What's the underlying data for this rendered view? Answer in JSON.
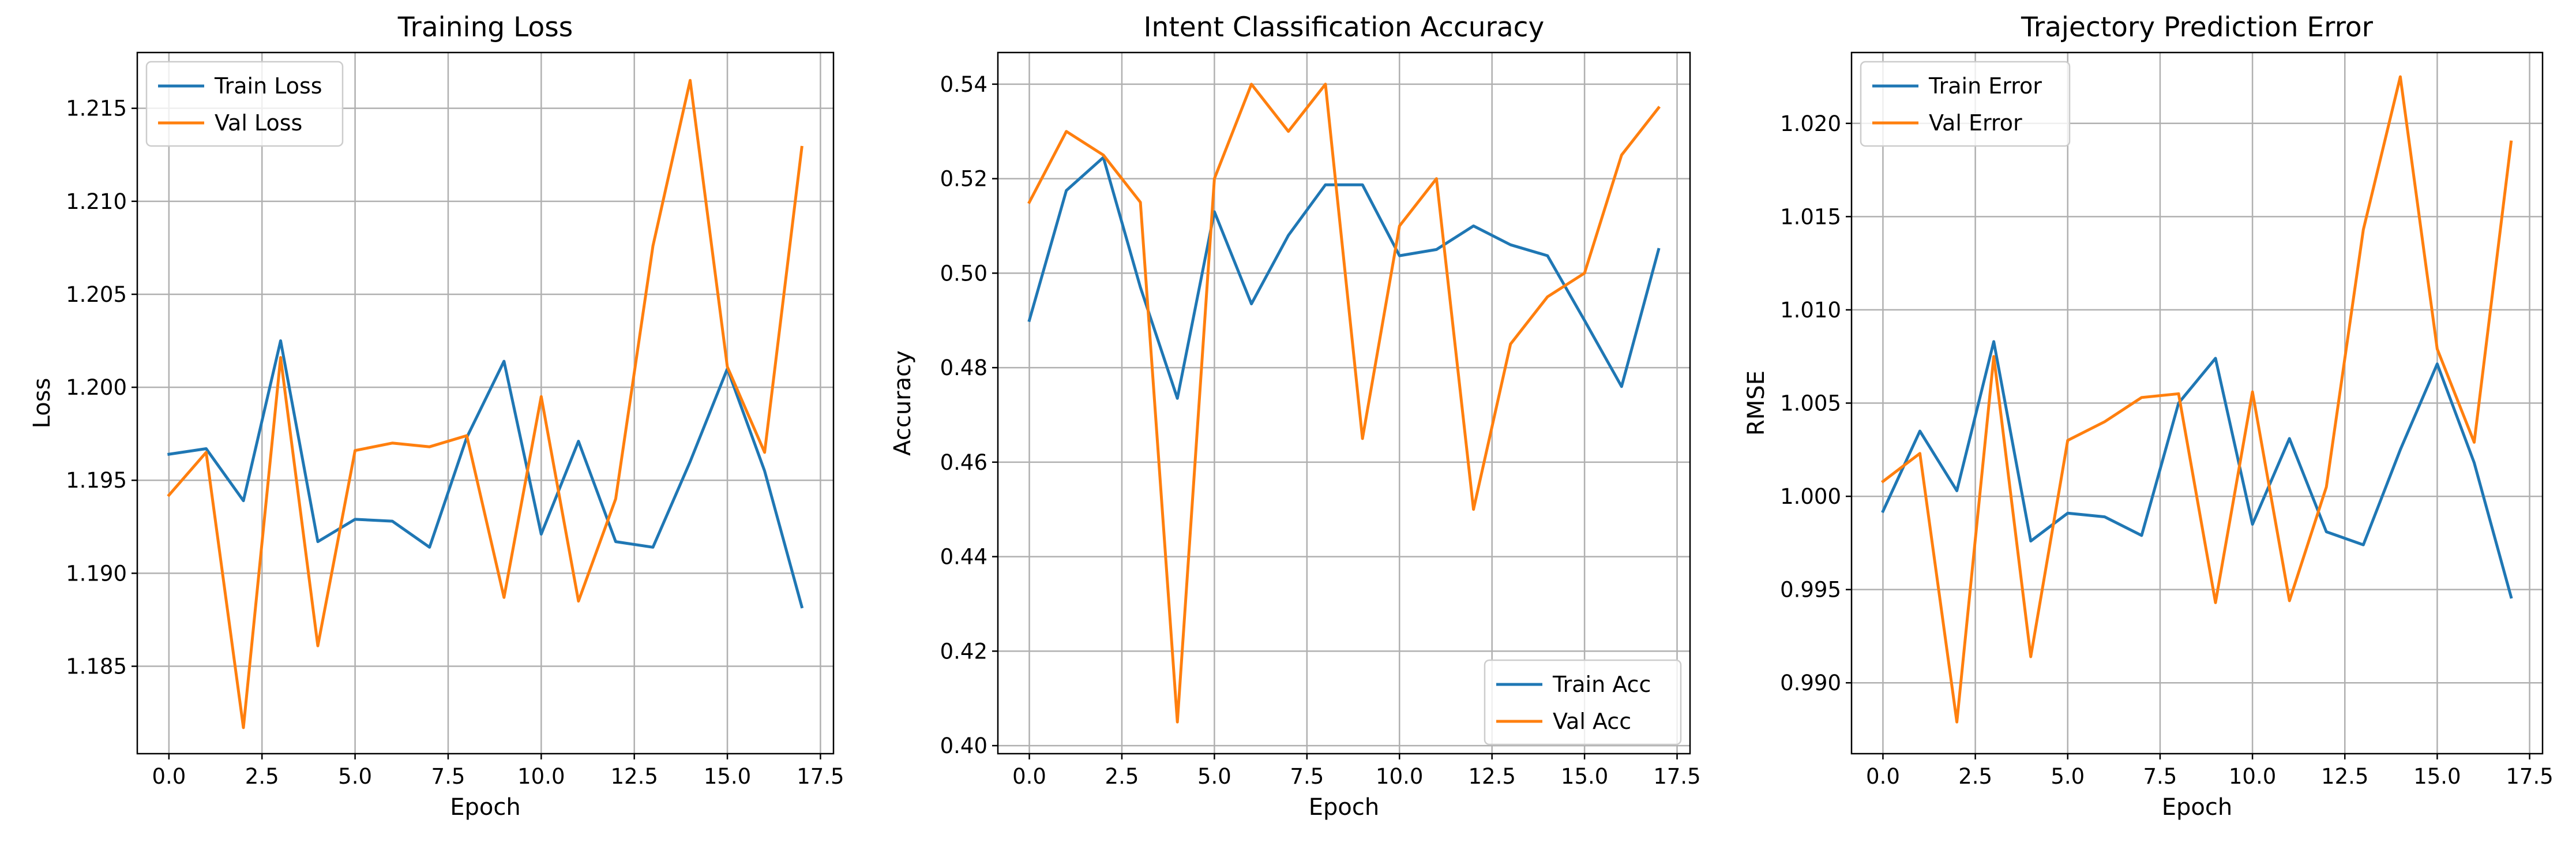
{
  "chart_data": [
    {
      "type": "line",
      "title": "Training Loss",
      "xlabel": "Epoch",
      "ylabel": "Loss",
      "xlim": [
        -0.85,
        17.85
      ],
      "ylim": [
        1.1803,
        1.218
      ],
      "xticks": [
        0.0,
        2.5,
        5.0,
        7.5,
        10.0,
        12.5,
        15.0,
        17.5
      ],
      "xtick_labels": [
        "0.0",
        "2.5",
        "5.0",
        "7.5",
        "10.0",
        "12.5",
        "15.0",
        "17.5"
      ],
      "yticks": [
        1.185,
        1.19,
        1.195,
        1.2,
        1.205,
        1.21,
        1.215
      ],
      "ytick_labels": [
        "1.185",
        "1.190",
        "1.195",
        "1.200",
        "1.205",
        "1.210",
        "1.215"
      ],
      "grid": true,
      "legend_position": "upper-left",
      "x": [
        0,
        1,
        2,
        3,
        4,
        5,
        6,
        7,
        8,
        9,
        10,
        11,
        12,
        13,
        14,
        15,
        16,
        17
      ],
      "series": [
        {
          "name": "Train Loss",
          "color": "#1f77b4",
          "values": [
            1.1964,
            1.1967,
            1.1939,
            1.2025,
            1.1917,
            1.1929,
            1.1928,
            1.1914,
            1.1973,
            1.2014,
            1.1921,
            1.1971,
            1.1917,
            1.1914,
            1.196,
            1.201,
            1.1955,
            1.1882
          ]
        },
        {
          "name": "Val Loss",
          "color": "#ff7f0e",
          "values": [
            1.1942,
            1.1965,
            1.1817,
            1.2016,
            1.1861,
            1.1966,
            1.197,
            1.1968,
            1.1974,
            1.1887,
            1.1995,
            1.1885,
            1.194,
            1.2076,
            1.2165,
            1.2011,
            1.1965,
            1.2129
          ]
        }
      ]
    },
    {
      "type": "line",
      "title": "Intent Classification Accuracy",
      "xlabel": "Epoch",
      "ylabel": "Accuracy",
      "xlim": [
        -0.85,
        17.85
      ],
      "ylim": [
        0.3983,
        0.5467
      ],
      "xticks": [
        0.0,
        2.5,
        5.0,
        7.5,
        10.0,
        12.5,
        15.0,
        17.5
      ],
      "xtick_labels": [
        "0.0",
        "2.5",
        "5.0",
        "7.5",
        "10.0",
        "12.5",
        "15.0",
        "17.5"
      ],
      "yticks": [
        0.4,
        0.42,
        0.44,
        0.46,
        0.48,
        0.5,
        0.52,
        0.54
      ],
      "ytick_labels": [
        "0.40",
        "0.42",
        "0.44",
        "0.46",
        "0.48",
        "0.50",
        "0.52",
        "0.54"
      ],
      "grid": true,
      "legend_position": "lower-right",
      "x": [
        0,
        1,
        2,
        3,
        4,
        5,
        6,
        7,
        8,
        9,
        10,
        11,
        12,
        13,
        14,
        15,
        16,
        17
      ],
      "series": [
        {
          "name": "Train Acc",
          "color": "#1f77b4",
          "values": [
            0.49,
            0.5175,
            0.5245,
            0.497,
            0.4735,
            0.513,
            0.4935,
            0.508,
            0.5187,
            0.5187,
            0.5037,
            0.505,
            0.51,
            0.506,
            0.5037,
            0.49,
            0.476,
            0.505
          ]
        },
        {
          "name": "Val Acc",
          "color": "#ff7f0e",
          "values": [
            0.515,
            0.53,
            0.525,
            0.515,
            0.405,
            0.52,
            0.54,
            0.53,
            0.54,
            0.465,
            0.51,
            0.52,
            0.45,
            0.485,
            0.495,
            0.5,
            0.525,
            0.535
          ]
        }
      ]
    },
    {
      "type": "line",
      "title": "Trajectory Prediction Error",
      "xlabel": "Epoch",
      "ylabel": "RMSE",
      "xlim": [
        -0.85,
        17.85
      ],
      "ylim": [
        0.9862,
        1.0238
      ],
      "xticks": [
        0.0,
        2.5,
        5.0,
        7.5,
        10.0,
        12.5,
        15.0,
        17.5
      ],
      "xtick_labels": [
        "0.0",
        "2.5",
        "5.0",
        "7.5",
        "10.0",
        "12.5",
        "15.0",
        "17.5"
      ],
      "yticks": [
        0.99,
        0.995,
        1.0,
        1.005,
        1.01,
        1.015,
        1.02
      ],
      "ytick_labels": [
        "0.990",
        "0.995",
        "1.000",
        "1.005",
        "1.010",
        "1.015",
        "1.020"
      ],
      "grid": true,
      "legend_position": "upper-left",
      "x": [
        0,
        1,
        2,
        3,
        4,
        5,
        6,
        7,
        8,
        9,
        10,
        11,
        12,
        13,
        14,
        15,
        16,
        17
      ],
      "series": [
        {
          "name": "Train Error",
          "color": "#1f77b4",
          "values": [
            0.9992,
            1.0035,
            1.0003,
            1.0083,
            0.9976,
            0.9991,
            0.9989,
            0.9979,
            1.005,
            1.0074,
            0.9985,
            1.0031,
            0.9981,
            0.9974,
            1.0025,
            1.0071,
            1.0018,
            0.9946
          ]
        },
        {
          "name": "Val Error",
          "color": "#ff7f0e",
          "values": [
            1.0008,
            1.0023,
            0.9879,
            1.0075,
            0.9914,
            1.003,
            1.004,
            1.0053,
            1.0055,
            0.9943,
            1.0056,
            0.9944,
            1.0005,
            1.0143,
            1.0225,
            1.0079,
            1.0029,
            1.019
          ]
        }
      ]
    }
  ]
}
